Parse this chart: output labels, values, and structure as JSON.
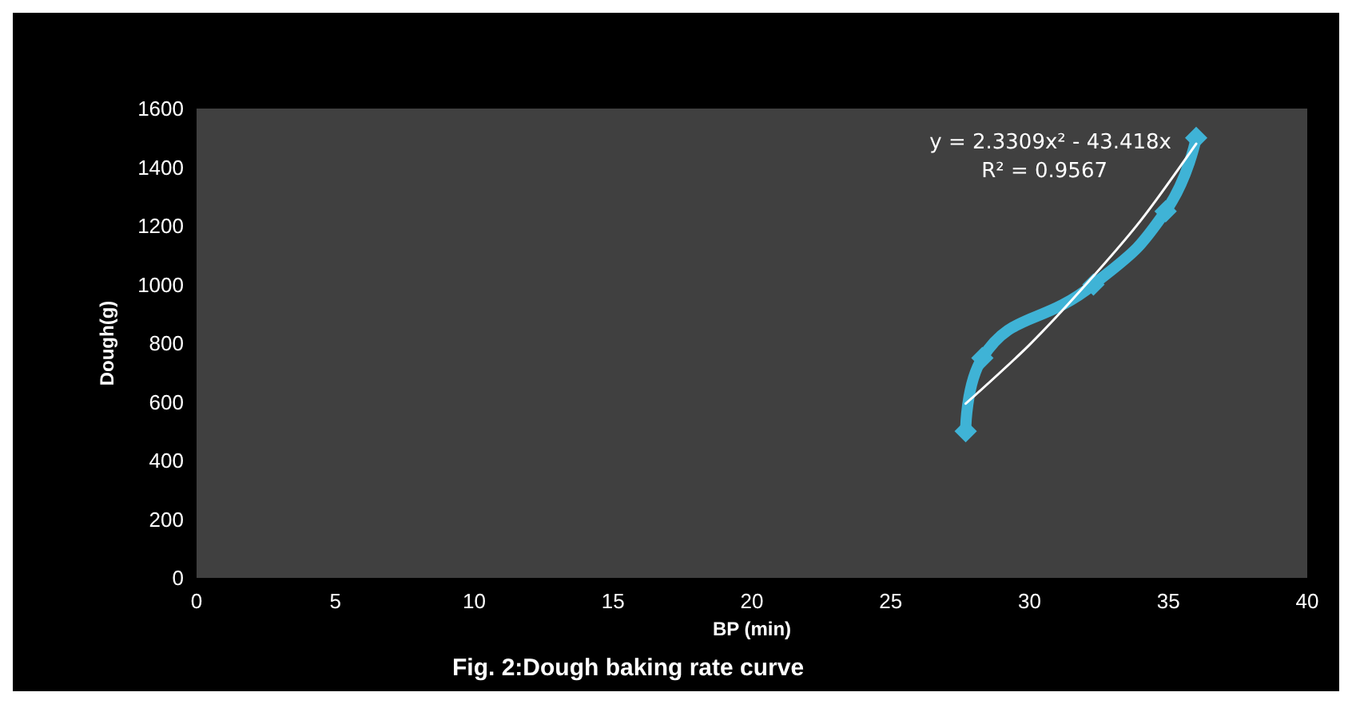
{
  "chart_data": {
    "type": "line",
    "title": "Fig. 2:Dough baking rate curve",
    "xlabel": "BP (min)",
    "ylabel": "Dough(g)",
    "annotations": [
      "y = 2.3309x² - 43.418x",
      "R² = 0.9567"
    ],
    "xlim": [
      0,
      40
    ],
    "xticks": [
      0,
      5,
      10,
      15,
      20,
      25,
      30,
      35,
      40
    ],
    "ylim": [
      0,
      1600
    ],
    "yticks": [
      0,
      200,
      400,
      600,
      800,
      1000,
      1200,
      1400,
      1600
    ],
    "marker": "diamond",
    "line_style": "solid",
    "series": [
      {
        "color": "#3fb3d6",
        "x": [
          27.7,
          28.3,
          32.3,
          34.9,
          36.0
        ],
        "values": [
          500,
          750,
          1000,
          1250,
          1500
        ]
      },
      {
        "type": "line",
        "color": "#ffffff",
        "marker": "none",
        "x": [
          27.7,
          30,
          32,
          34,
          36
        ],
        "values": [
          594,
          795,
          997,
          1218,
          1480
        ]
      }
    ]
  }
}
